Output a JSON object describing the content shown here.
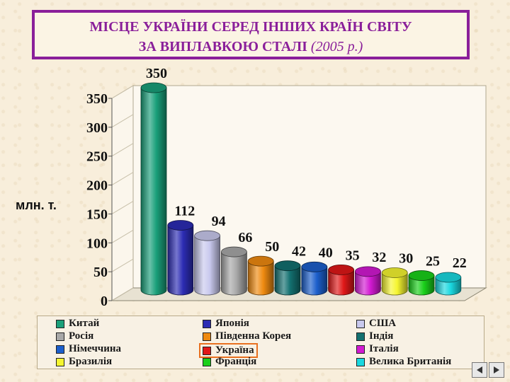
{
  "title": {
    "line1": "МІСЦЕ УКРАЇНИ СЕРЕД ІНШИХ КРАЇН СВІТУ",
    "line2": "ЗА ВИПЛАВКОЮ СТАЛІ",
    "year": "(2005 р.)"
  },
  "chart_data": {
    "type": "bar",
    "ylabel": "млн. т.",
    "ylim": [
      0,
      350
    ],
    "yticks": [
      0,
      50,
      100,
      150,
      200,
      250,
      300,
      350
    ],
    "categories": [
      "Китай",
      "Японія",
      "США",
      "Росія",
      "Південна Корея",
      "Індія",
      "Німеччина",
      "Україна",
      "Італія",
      "Бразилія",
      "Франція",
      "Велика Британія"
    ],
    "values": [
      350,
      112,
      94,
      66,
      50,
      42,
      40,
      35,
      32,
      30,
      25,
      22
    ],
    "value_labels": [
      "350",
      "112",
      "94",
      "66",
      "50",
      "42",
      "40",
      "35",
      "32",
      "30",
      "25",
      "22"
    ],
    "colors": [
      "#1aa07a",
      "#2c2cb4",
      "#c9c9ee",
      "#a8a8a8",
      "#ef8a10",
      "#137070",
      "#1c5fcc",
      "#e01818",
      "#d21ad2",
      "#f5f530",
      "#1ad01a",
      "#1ad8e0"
    ],
    "highlight": "Україна",
    "grid": false,
    "legend_position": "bottom"
  },
  "legend_order": [
    0,
    1,
    2,
    3,
    4,
    5,
    6,
    7,
    8,
    9,
    10,
    11
  ],
  "nav": {
    "prev_icon": "arrow-left-icon",
    "next_icon": "arrow-right-icon"
  }
}
